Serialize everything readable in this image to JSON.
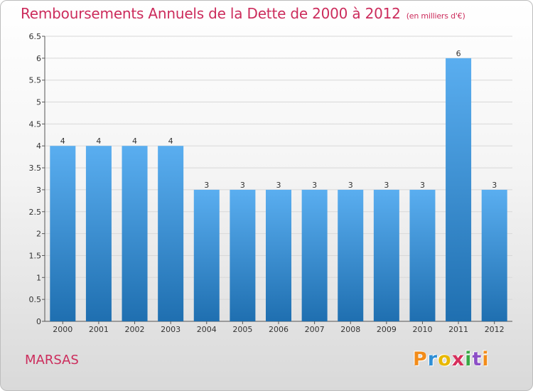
{
  "title": "Remboursements Annuels de la Dette de 2000 à 2012",
  "unit_note": "(en milliers d'€)",
  "town": "MARSAS",
  "logo": {
    "letters": [
      "P",
      "r",
      "o",
      "x",
      "i",
      "t",
      "i"
    ],
    "colors": [
      "#f28c1a",
      "#2f8fd6",
      "#e8b800",
      "#d62f5c",
      "#38a845",
      "#8c4fc6",
      "#f28c1a"
    ]
  },
  "colors": {
    "bar_top": "#5aaef0",
    "bar_bottom": "#1f6fb0",
    "grid": "#d8d8d8",
    "title": "#cc2c5c"
  },
  "chart_data": {
    "type": "bar",
    "title": "Remboursements Annuels de la Dette de 2000 à 2012",
    "categories": [
      "2000",
      "2001",
      "2002",
      "2003",
      "2004",
      "2005",
      "2006",
      "2007",
      "2008",
      "2009",
      "2010",
      "2011",
      "2012"
    ],
    "values": [
      4,
      4,
      4,
      4,
      3,
      3,
      3,
      3,
      3,
      3,
      3,
      6,
      3
    ],
    "ylim": [
      0,
      6.5
    ],
    "yticks": [
      "0",
      "0.5",
      "1",
      "1.5",
      "2",
      "2.5",
      "3",
      "3.5",
      "4",
      "4.5",
      "5",
      "5.5",
      "6",
      "6.5"
    ],
    "grid": true
  }
}
